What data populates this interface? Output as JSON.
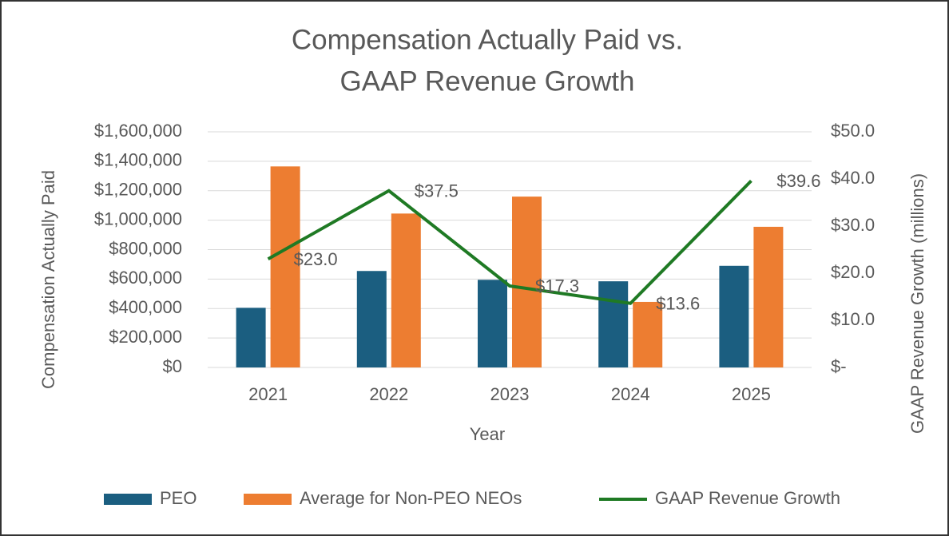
{
  "chart_data": {
    "type": "bar",
    "title": [
      "Compensation Actually Paid vs.",
      "GAAP Revenue Growth"
    ],
    "x_label": "Year",
    "y_label": "Compensation Actually Paid",
    "y2_label": "GAAP Revenue Growth (millions)",
    "categories": [
      "2021",
      "2022",
      "2023",
      "2024",
      "2025"
    ],
    "series": [
      {
        "name": "PEO",
        "color": "#1b5e80",
        "type": "bar",
        "values": [
          405000,
          655000,
          595000,
          585000,
          690000
        ]
      },
      {
        "name": "Average for Non-PEO NEOs",
        "color": "#ed7d31",
        "type": "bar",
        "values": [
          1365000,
          1045000,
          1160000,
          445000,
          955000
        ]
      },
      {
        "name": "GAAP Revenue Growth",
        "color": "#1f7a24",
        "type": "line",
        "axis": "y2",
        "values": [
          23.0,
          37.5,
          17.3,
          13.6,
          39.6
        ],
        "value_labels": [
          "$23.0",
          "$37.5",
          "$17.3",
          "$13.6",
          "$39.6"
        ]
      }
    ],
    "ylim": [
      0,
      1600000
    ],
    "yticks": [
      {
        "value": 0,
        "label": "$0"
      },
      {
        "value": 200000,
        "label": "$200,000"
      },
      {
        "value": 400000,
        "label": "$400,000"
      },
      {
        "value": 600000,
        "label": "$600,000"
      },
      {
        "value": 800000,
        "label": "$800,000"
      },
      {
        "value": 1000000,
        "label": "$1,000,000"
      },
      {
        "value": 1200000,
        "label": "$1,200,000"
      },
      {
        "value": 1400000,
        "label": "$1,400,000"
      },
      {
        "value": 1600000,
        "label": "$1,600,000"
      }
    ],
    "y2lim": [
      0,
      50
    ],
    "y2ticks": [
      {
        "value": 0,
        "label": "$-"
      },
      {
        "value": 10,
        "label": "$10.0"
      },
      {
        "value": 20,
        "label": "$20.0"
      },
      {
        "value": 30,
        "label": "$30.0"
      },
      {
        "value": 40,
        "label": "$40.0"
      },
      {
        "value": 50,
        "label": "$50.0"
      }
    ],
    "grid": true,
    "legend": "bottom"
  }
}
